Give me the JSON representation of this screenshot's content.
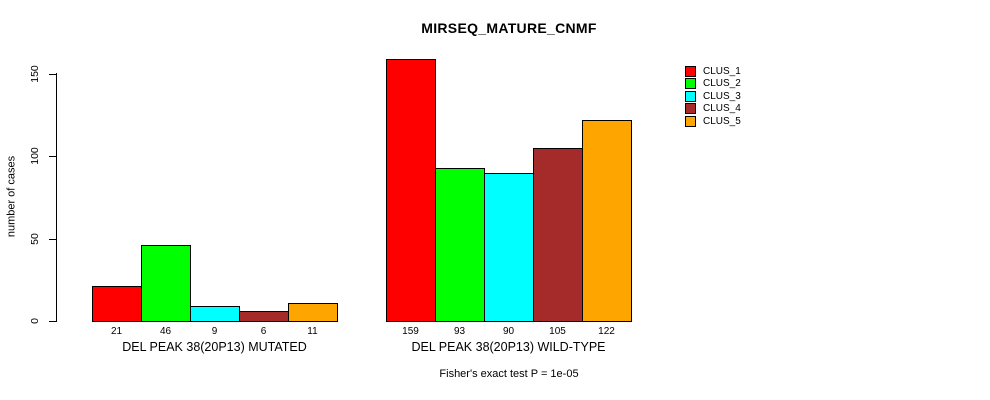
{
  "chart_data": {
    "type": "bar",
    "title": "MIRSEQ_MATURE_CNMF",
    "xlabel": "",
    "ylabel": "number of cases",
    "ylim": [
      0,
      150
    ],
    "yticks": [
      0,
      50,
      100,
      150
    ],
    "grid": false,
    "legend_position": "top-right",
    "bar_value_labels_shown": true,
    "categories": [
      "DEL PEAK 38(20P13) MUTATED",
      "DEL PEAK 38(20P13) WILD-TYPE"
    ],
    "series": [
      {
        "name": "CLUS_1",
        "color": "#FF0000",
        "values": [
          21,
          159
        ]
      },
      {
        "name": "CLUS_2",
        "color": "#00FF00",
        "values": [
          46,
          93
        ]
      },
      {
        "name": "CLUS_3",
        "color": "#00FFFF",
        "values": [
          9,
          90
        ]
      },
      {
        "name": "CLUS_4",
        "color": "#A52A2A",
        "values": [
          6,
          105
        ]
      },
      {
        "name": "CLUS_5",
        "color": "#FFA500",
        "values": [
          11,
          122
        ]
      }
    ],
    "annotation": "Fisher's exact test P = 1e-05"
  }
}
